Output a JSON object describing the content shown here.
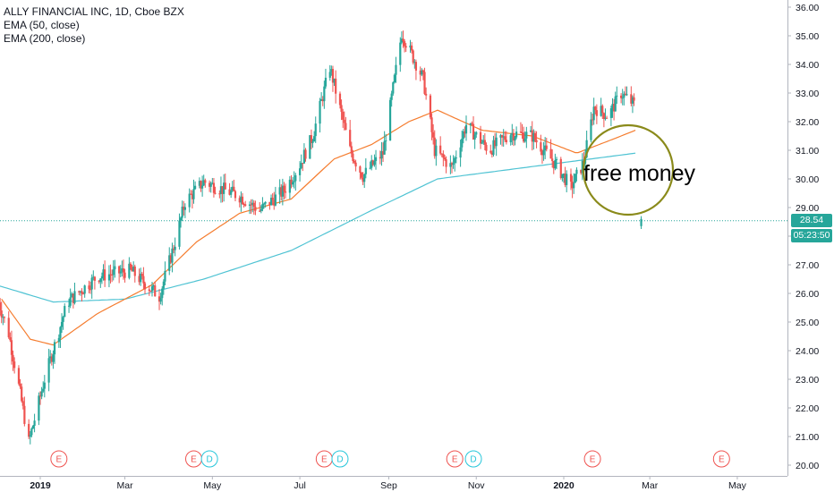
{
  "legend": {
    "symbol": "ALLY FINANCIAL INC, 1D, Cboe BZX",
    "ema50": "EMA (50, close)",
    "ema200": "EMA (200, close)"
  },
  "annotation": "free money",
  "last_price": "28.54",
  "countdown": "05:23:50",
  "colors": {
    "up": "#26a69a",
    "down": "#ef5350",
    "ema50": "#f57c2e",
    "ema200": "#4fc3d3",
    "circle": "#8a8a1a",
    "earnings": "#ef5350",
    "dividend": "#26c6da"
  },
  "events": [
    {
      "label": "E",
      "type": "earnings",
      "date": "2019-01-14"
    },
    {
      "label": "E",
      "type": "earnings",
      "date": "2019-04-18"
    },
    {
      "label": "D",
      "type": "dividend",
      "date": "2019-04-29"
    },
    {
      "label": "E",
      "type": "earnings",
      "date": "2019-07-18"
    },
    {
      "label": "D",
      "type": "dividend",
      "date": "2019-07-29"
    },
    {
      "label": "E",
      "type": "earnings",
      "date": "2019-10-17"
    },
    {
      "label": "D",
      "type": "dividend",
      "date": "2019-10-30"
    },
    {
      "label": "E",
      "type": "earnings",
      "date": "2020-01-21"
    },
    {
      "label": "E",
      "type": "earnings",
      "date": "2020-04-20"
    }
  ],
  "chart_data": {
    "type": "candlestick",
    "title": "ALLY FINANCIAL INC, 1D, Cboe BZX",
    "y_axis": {
      "ticks": [
        "20.00",
        "21.00",
        "22.00",
        "23.00",
        "24.00",
        "25.00",
        "26.00",
        "27.00",
        "28.00",
        "29.00",
        "30.00",
        "31.00",
        "32.00",
        "33.00",
        "34.00",
        "35.00",
        "36.00"
      ],
      "ylim": [
        19.9,
        36.2
      ]
    },
    "x_axis": {
      "ticks": [
        "2019",
        "Mar",
        "May",
        "Jul",
        "Sep",
        "Nov",
        "2020",
        "Mar",
        "May"
      ]
    },
    "price_key_points": [
      {
        "date": "2018-12-01",
        "close": 26.0
      },
      {
        "date": "2018-12-10",
        "close": 24.6
      },
      {
        "date": "2018-12-18",
        "close": 22.5
      },
      {
        "date": "2018-12-24",
        "close": 20.8
      },
      {
        "date": "2019-01-04",
        "close": 23.0
      },
      {
        "date": "2019-01-20",
        "close": 25.7
      },
      {
        "date": "2019-02-10",
        "close": 26.6
      },
      {
        "date": "2019-03-05",
        "close": 26.8
      },
      {
        "date": "2019-03-25",
        "close": 25.9
      },
      {
        "date": "2019-04-05",
        "close": 27.8
      },
      {
        "date": "2019-04-12",
        "close": 29.2
      },
      {
        "date": "2019-04-25",
        "close": 29.9
      },
      {
        "date": "2019-05-20",
        "close": 29.4
      },
      {
        "date": "2019-06-03",
        "close": 28.9
      },
      {
        "date": "2019-06-20",
        "close": 29.6
      },
      {
        "date": "2019-07-01",
        "close": 30.5
      },
      {
        "date": "2019-07-10",
        "close": 31.5
      },
      {
        "date": "2019-07-22",
        "close": 33.9
      },
      {
        "date": "2019-08-05",
        "close": 31.0
      },
      {
        "date": "2019-08-14",
        "close": 30.1
      },
      {
        "date": "2019-08-28",
        "close": 30.9
      },
      {
        "date": "2019-09-10",
        "close": 35.1
      },
      {
        "date": "2019-09-25",
        "close": 33.5
      },
      {
        "date": "2019-10-03",
        "close": 31.0
      },
      {
        "date": "2019-10-15",
        "close": 30.4
      },
      {
        "date": "2019-10-25",
        "close": 31.9
      },
      {
        "date": "2019-11-10",
        "close": 31.0
      },
      {
        "date": "2019-11-25",
        "close": 31.6
      },
      {
        "date": "2019-12-10",
        "close": 31.5
      },
      {
        "date": "2019-12-28",
        "close": 30.4
      },
      {
        "date": "2020-01-06",
        "close": 29.7
      },
      {
        "date": "2020-01-15",
        "close": 30.6
      },
      {
        "date": "2020-01-22",
        "close": 32.5
      },
      {
        "date": "2020-02-01",
        "close": 32.2
      },
      {
        "date": "2020-02-10",
        "close": 33.0
      },
      {
        "date": "2020-02-19",
        "close": 32.6
      },
      {
        "date": "2020-02-24",
        "close": 28.54
      }
    ],
    "ema50_points": [
      {
        "date": "2018-12-05",
        "value": 25.8
      },
      {
        "date": "2018-12-25",
        "value": 24.4
      },
      {
        "date": "2019-01-10",
        "value": 24.2
      },
      {
        "date": "2019-02-10",
        "value": 25.3
      },
      {
        "date": "2019-03-20",
        "value": 26.3
      },
      {
        "date": "2019-04-20",
        "value": 27.8
      },
      {
        "date": "2019-05-20",
        "value": 28.8
      },
      {
        "date": "2019-06-25",
        "value": 29.3
      },
      {
        "date": "2019-07-25",
        "value": 30.7
      },
      {
        "date": "2019-08-20",
        "value": 31.2
      },
      {
        "date": "2019-09-15",
        "value": 32.0
      },
      {
        "date": "2019-10-05",
        "value": 32.4
      },
      {
        "date": "2019-11-05",
        "value": 31.7
      },
      {
        "date": "2019-12-10",
        "value": 31.5
      },
      {
        "date": "2020-01-10",
        "value": 30.9
      },
      {
        "date": "2020-02-05",
        "value": 31.4
      },
      {
        "date": "2020-02-20",
        "value": 31.7
      }
    ],
    "ema200_points": [
      {
        "date": "2018-12-01",
        "value": 26.3
      },
      {
        "date": "2019-01-10",
        "value": 25.7
      },
      {
        "date": "2019-03-01",
        "value": 25.8
      },
      {
        "date": "2019-04-25",
        "value": 26.5
      },
      {
        "date": "2019-06-25",
        "value": 27.5
      },
      {
        "date": "2019-08-20",
        "value": 28.9
      },
      {
        "date": "2019-10-05",
        "value": 30.0
      },
      {
        "date": "2019-11-20",
        "value": 30.3
      },
      {
        "date": "2020-01-05",
        "value": 30.6
      },
      {
        "date": "2020-02-20",
        "value": 30.9
      }
    ]
  }
}
